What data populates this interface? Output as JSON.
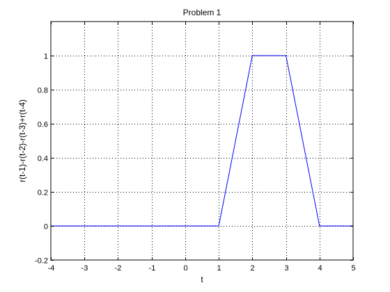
{
  "chart_data": {
    "type": "line",
    "title": "Problem 1",
    "xlabel": "t",
    "ylabel": "r(t-1)-r(t-2)-r(t-3)+r(t-4)",
    "xlim": [
      -4,
      5
    ],
    "ylim": [
      -0.2,
      1.2
    ],
    "x_ticks": [
      -4,
      -3,
      -2,
      -1,
      0,
      1,
      2,
      3,
      4,
      5
    ],
    "x_tick_labels": [
      "-4",
      "-3",
      "-2",
      "-1",
      "0",
      "1",
      "2",
      "3",
      "4",
      "5"
    ],
    "y_ticks": [
      -0.2,
      0,
      0.2,
      0.4,
      0.6,
      0.8,
      1
    ],
    "y_tick_labels": [
      "-0.2",
      "0",
      "0.2",
      "0.4",
      "0.6",
      "0.8",
      "1"
    ],
    "grid": true,
    "grid_style": "dotted",
    "series": [
      {
        "color": "#0000ff",
        "x": [
          -4,
          1,
          2,
          3,
          4,
          5
        ],
        "y": [
          0,
          0,
          1,
          1,
          0,
          0
        ]
      }
    ]
  }
}
